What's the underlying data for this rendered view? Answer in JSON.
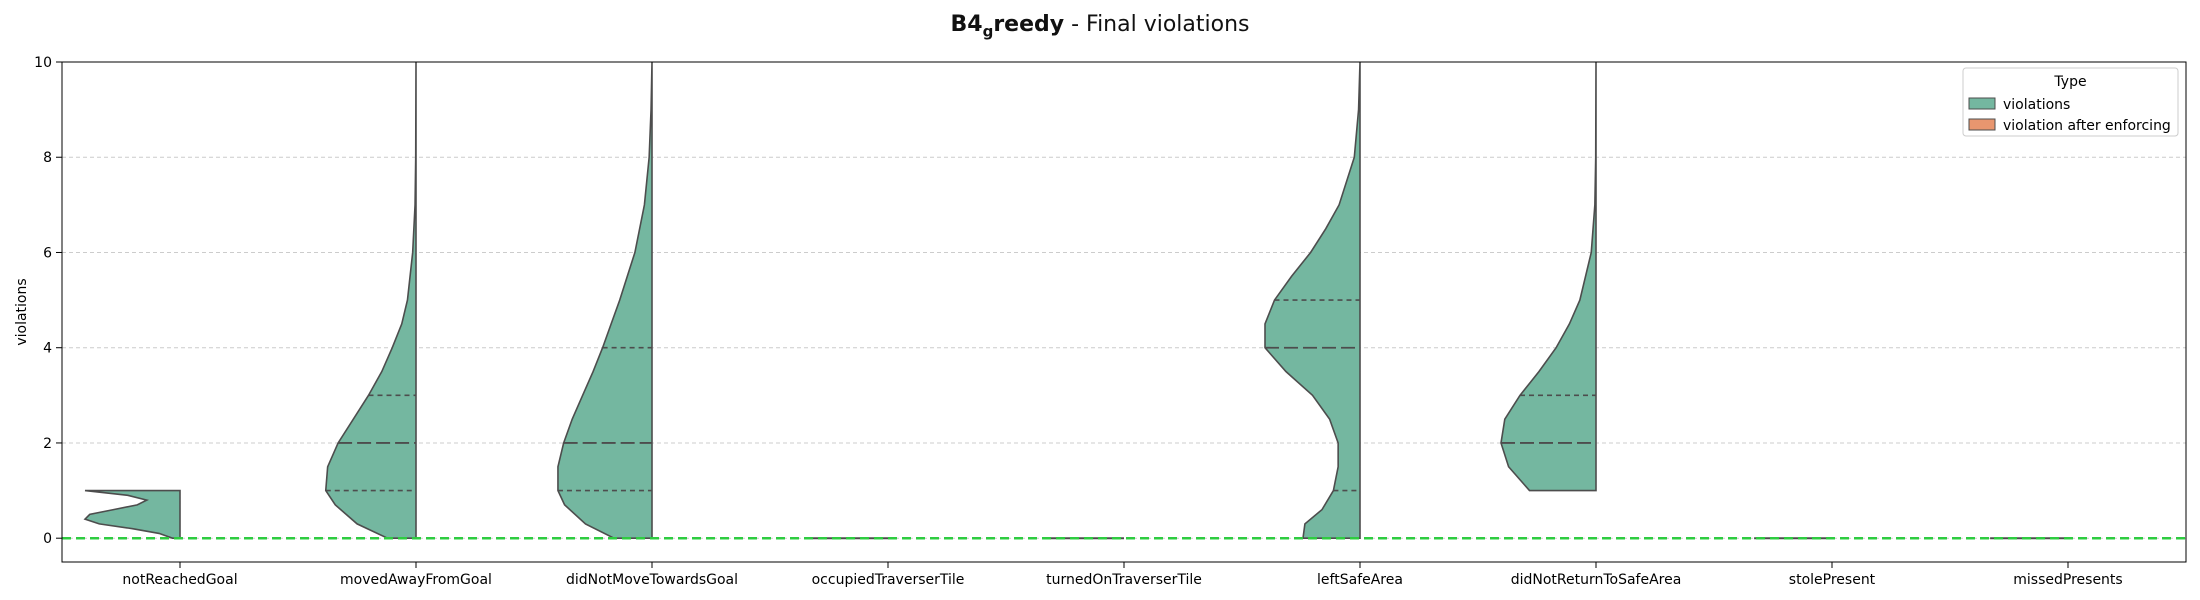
{
  "chart_data": {
    "type": "violin",
    "title": {
      "bold_main": "B4",
      "bold_sub": "g",
      "bold_rest": "reedy",
      "rest": " - Final violations"
    },
    "ylabel": "violations",
    "xlabel": "",
    "ylim": [
      -0.5,
      10
    ],
    "yticks": [
      0,
      2,
      4,
      6,
      8,
      10
    ],
    "grid": "y-dashed",
    "reference_line": {
      "y": 0,
      "color": "#2ecc40",
      "style": "dashed"
    },
    "legend": {
      "title": "Type",
      "placement": "top-right",
      "entries": [
        {
          "label": "violations",
          "color": "#74b7a0"
        },
        {
          "label": "violation after enforcing",
          "color": "#e8966f"
        }
      ]
    },
    "categories": [
      "notReachedGoal",
      "movedAwayFromGoal",
      "didNotMoveTowardsGoal",
      "occupiedTraverserTile",
      "turnedOnTraverserTile",
      "leftSafeArea",
      "didNotReturnToSafeArea",
      "stolePresent",
      "missedPresents"
    ],
    "series": [
      {
        "name": "violations",
        "color": "#74b7a0",
        "side": "left",
        "violins": [
          {
            "category": "notReachedGoal",
            "profile": [
              [
                0,
                0.08
              ],
              [
                0.1,
                0.22
              ],
              [
                0.2,
                0.5
              ],
              [
                0.3,
                0.85
              ],
              [
                0.4,
                1.0
              ],
              [
                0.5,
                0.95
              ],
              [
                0.6,
                0.7
              ],
              [
                0.7,
                0.45
              ],
              [
                0.8,
                0.35
              ],
              [
                0.9,
                0.55
              ],
              [
                1.0,
                1.0
              ]
            ],
            "quartiles": [],
            "median": null
          },
          {
            "category": "movedAwayFromGoal",
            "profile": [
              [
                0,
                0.3
              ],
              [
                0.3,
                0.62
              ],
              [
                0.7,
                0.85
              ],
              [
                1.0,
                0.95
              ],
              [
                1.5,
                0.93
              ],
              [
                2.0,
                0.82
              ],
              [
                2.5,
                0.66
              ],
              [
                3.0,
                0.5
              ],
              [
                3.5,
                0.36
              ],
              [
                4.0,
                0.25
              ],
              [
                4.5,
                0.15
              ],
              [
                5.0,
                0.09
              ],
              [
                6.0,
                0.035
              ],
              [
                7.0,
                0.01
              ],
              [
                8.0,
                0.003
              ],
              [
                10.0,
                0.0
              ]
            ],
            "quartiles": [
              1,
              3
            ],
            "median": 2
          },
          {
            "category": "didNotMoveTowardsGoal",
            "profile": [
              [
                0,
                0.4
              ],
              [
                0.3,
                0.7
              ],
              [
                0.7,
                0.92
              ],
              [
                1.0,
                0.99
              ],
              [
                1.5,
                0.99
              ],
              [
                2.0,
                0.93
              ],
              [
                2.5,
                0.84
              ],
              [
                3.0,
                0.73
              ],
              [
                3.5,
                0.62
              ],
              [
                4.0,
                0.52
              ],
              [
                4.5,
                0.43
              ],
              [
                5.0,
                0.34
              ],
              [
                5.5,
                0.26
              ],
              [
                6.0,
                0.18
              ],
              [
                7.0,
                0.08
              ],
              [
                8.0,
                0.03
              ],
              [
                9.0,
                0.01
              ],
              [
                10.0,
                0.0
              ]
            ],
            "quartiles": [
              1,
              4
            ],
            "median": 2
          },
          {
            "category": "occupiedTraverserTile",
            "profile": [
              [
                0,
                1.0
              ]
            ],
            "quartiles": [],
            "median": null
          },
          {
            "category": "turnedOnTraverserTile",
            "profile": [
              [
                0,
                1.0
              ]
            ],
            "quartiles": [],
            "median": null
          },
          {
            "category": "leftSafeArea",
            "profile": [
              [
                0,
                0.6
              ],
              [
                0.3,
                0.58
              ],
              [
                0.6,
                0.4
              ],
              [
                1.0,
                0.28
              ],
              [
                1.5,
                0.23
              ],
              [
                2.0,
                0.23
              ],
              [
                2.5,
                0.32
              ],
              [
                3.0,
                0.5
              ],
              [
                3.5,
                0.78
              ],
              [
                4.0,
                1.0
              ],
              [
                4.5,
                1.0
              ],
              [
                5.0,
                0.9
              ],
              [
                5.5,
                0.72
              ],
              [
                6.0,
                0.52
              ],
              [
                6.5,
                0.36
              ],
              [
                7.0,
                0.22
              ],
              [
                8.0,
                0.06
              ],
              [
                9.0,
                0.015
              ],
              [
                10.0,
                0.0
              ]
            ],
            "quartiles": [
              1,
              5
            ],
            "median": 4
          },
          {
            "category": "didNotReturnToSafeArea",
            "profile": [
              [
                1.0,
                0.7
              ],
              [
                1.5,
                0.92
              ],
              [
                2.0,
                1.0
              ],
              [
                2.5,
                0.96
              ],
              [
                3.0,
                0.8
              ],
              [
                3.5,
                0.6
              ],
              [
                4.0,
                0.42
              ],
              [
                4.5,
                0.28
              ],
              [
                5.0,
                0.17
              ],
              [
                6.0,
                0.05
              ],
              [
                7.0,
                0.012
              ],
              [
                8.0,
                0.003
              ],
              [
                10.0,
                0.0
              ]
            ],
            "quartiles": [
              3
            ],
            "median": 2
          },
          {
            "category": "stolePresent",
            "profile": [
              [
                0,
                1.0
              ]
            ],
            "quartiles": [],
            "median": null
          },
          {
            "category": "missedPresents",
            "profile": [
              [
                0,
                1.0
              ]
            ],
            "quartiles": [],
            "median": null
          }
        ]
      },
      {
        "name": "violation after enforcing",
        "color": "#e8966f",
        "side": "right",
        "violins": []
      }
    ]
  }
}
